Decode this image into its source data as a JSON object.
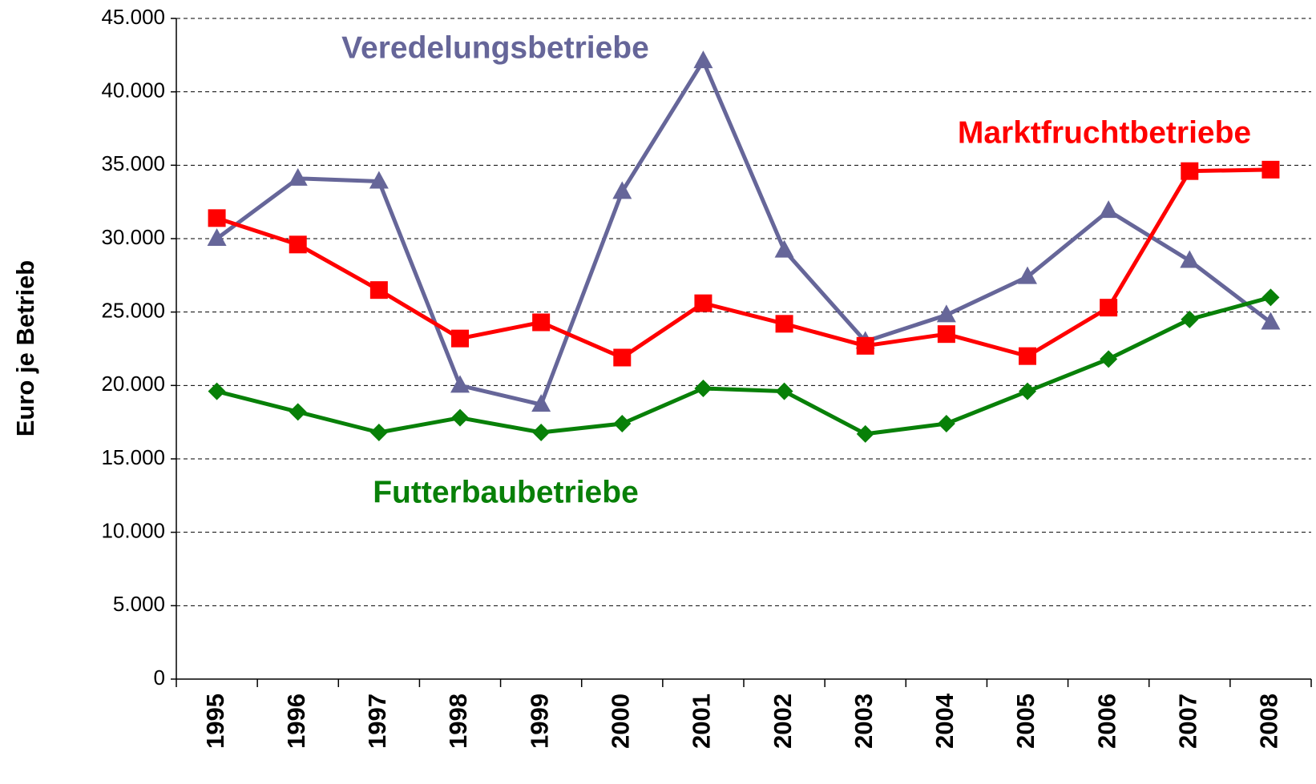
{
  "chart_data": {
    "type": "line",
    "y_label": "Euro je Betrieb",
    "categories": [
      "1995",
      "1996",
      "1997",
      "1998",
      "1999",
      "2000",
      "2001",
      "2002",
      "2003",
      "2004",
      "2005",
      "2006",
      "2007",
      "2008"
    ],
    "series": [
      {
        "name": "Veredelungsbetriebe",
        "color": "#666699",
        "marker": "triangle",
        "values": [
          30000,
          34100,
          33900,
          20000,
          18700,
          33200,
          42100,
          29200,
          23000,
          24800,
          27400,
          31900,
          28500,
          24300
        ]
      },
      {
        "name": "Marktfruchtbetriebe",
        "color": "#ff0000",
        "marker": "square",
        "values": [
          31400,
          29600,
          26500,
          23200,
          24300,
          21900,
          25600,
          24200,
          22700,
          23500,
          22000,
          25300,
          34600,
          34700
        ]
      },
      {
        "name": "Futterbaubetriebe",
        "color": "#088008",
        "marker": "diamond",
        "values": [
          19600,
          18200,
          16800,
          17800,
          16800,
          17400,
          19800,
          19600,
          16700,
          17400,
          19600,
          21800,
          24500,
          26000
        ]
      }
    ],
    "ylim": [
      0,
      45000
    ],
    "yticks": [
      0,
      {
        "value": 5000,
        "label": "5.000"
      },
      {
        "value": 10000,
        "label": "10.000"
      },
      {
        "value": 15000,
        "label": "15.000"
      },
      {
        "value": 20000,
        "label": "20.000"
      },
      {
        "value": 25000,
        "label": "25.000"
      },
      {
        "value": 30000,
        "label": "30.000"
      },
      {
        "value": 35000,
        "label": "35.000"
      },
      {
        "value": 40000,
        "label": "40.000"
      },
      {
        "value": 45000,
        "label": "45.000"
      }
    ],
    "grid": true
  }
}
